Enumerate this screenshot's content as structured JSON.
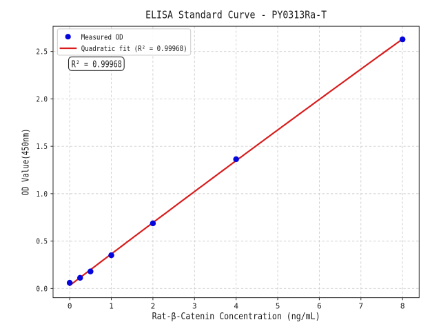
{
  "figure": {
    "background": "#ffffff"
  },
  "chart_data": {
    "type": "scatter",
    "title": "ELISA Standard Curve - PY0313Ra-T",
    "xlabel": "Rat-β-Catenin Concentration (ng/mL)",
    "ylabel": "OD Value(450nm)",
    "x": [
      0,
      0.25,
      0.5,
      1,
      2,
      4,
      8
    ],
    "series": [
      {
        "name": "Measured OD",
        "kind": "scatter",
        "color": "#0505dd",
        "values": [
          0.06,
          0.113,
          0.18,
          0.351,
          0.687,
          1.364,
          2.628
        ]
      },
      {
        "name": "Quadratic fit (R² = 0.99968)",
        "kind": "line",
        "color": "#d91c1c",
        "fit_coeffs": [
          -0.001049,
          0.333314,
          0.031831
        ],
        "fit_domain": [
          0,
          8
        ]
      }
    ],
    "xlim": [
      -0.4,
      8.4
    ],
    "ylim": [
      -0.0967,
      2.766
    ],
    "xticks": [
      0,
      1,
      2,
      3,
      4,
      5,
      6,
      7,
      8
    ],
    "xtick_labels": [
      "0",
      "1",
      "2",
      "3",
      "4",
      "5",
      "6",
      "7",
      "8"
    ],
    "yticks": [
      0,
      0.5,
      1,
      1.5,
      2,
      2.5
    ],
    "ytick_labels": [
      "0.0",
      "0.5",
      "1.0",
      "1.5",
      "2.0",
      "2.5"
    ],
    "grid": true,
    "grid_style": "dashed",
    "legend_position": "upper left",
    "annotation": "R² = 0.99968",
    "r_squared": "0.99968",
    "colors": {
      "points": "#0505dd",
      "fit_line": "#d91c1c",
      "grid": "#cdcdcd",
      "spine": "#262626",
      "text": "#1a1a1a",
      "legend_border": "#cccccc",
      "background": "#ffffff"
    }
  }
}
